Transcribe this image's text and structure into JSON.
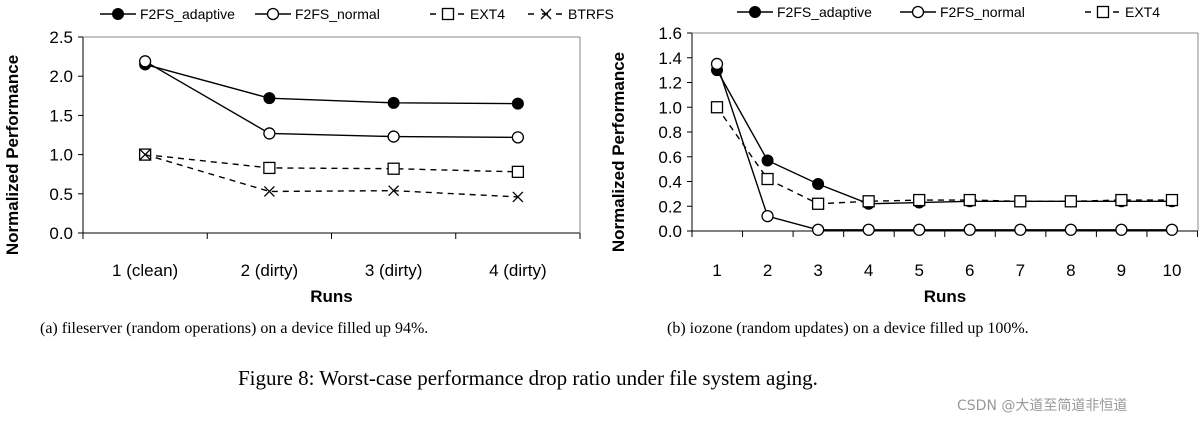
{
  "chart_data": [
    {
      "type": "line",
      "xlabel": "Runs",
      "ylabel": "Normalized Performance",
      "categories": [
        "1 (clean)",
        "2 (dirty)",
        "3 (dirty)",
        "4 (dirty)"
      ],
      "ylim": [
        0,
        2.5
      ],
      "yticks": [
        "0.0",
        "0.5",
        "1.0",
        "1.5",
        "2.0",
        "2.5"
      ],
      "legend_position": "top",
      "grid": false,
      "series": [
        {
          "name": "F2FS_adaptive",
          "marker": "filled-circle",
          "dash": false,
          "values": [
            2.15,
            1.72,
            1.66,
            1.65
          ]
        },
        {
          "name": "F2FS_normal",
          "marker": "open-circle",
          "dash": false,
          "values": [
            2.19,
            1.27,
            1.23,
            1.22
          ]
        },
        {
          "name": "EXT4",
          "marker": "open-square",
          "dash": true,
          "values": [
            1.0,
            0.83,
            0.82,
            0.78
          ]
        },
        {
          "name": "BTRFS",
          "marker": "cross",
          "dash": true,
          "values": [
            1.0,
            0.53,
            0.54,
            0.46
          ]
        }
      ]
    },
    {
      "type": "line",
      "xlabel": "Runs",
      "ylabel": "Normalized Performance",
      "categories": [
        "1",
        "2",
        "3",
        "4",
        "5",
        "6",
        "7",
        "8",
        "9",
        "10"
      ],
      "ylim": [
        0,
        1.6
      ],
      "yticks": [
        "0.0",
        "0.2",
        "0.4",
        "0.6",
        "0.8",
        "1.0",
        "1.2",
        "1.4",
        "1.6"
      ],
      "legend_position": "top",
      "grid": false,
      "series": [
        {
          "name": "F2FS_adaptive",
          "marker": "filled-circle",
          "dash": false,
          "values": [
            1.3,
            0.57,
            0.38,
            0.22,
            0.23,
            0.24,
            0.24,
            0.24,
            0.24,
            0.24
          ]
        },
        {
          "name": "F2FS_normal",
          "marker": "open-circle",
          "dash": false,
          "values": [
            1.35,
            0.12,
            0.01,
            0.01,
            0.01,
            0.01,
            0.01,
            0.01,
            0.01,
            0.01
          ]
        },
        {
          "name": "EXT4",
          "marker": "open-square",
          "dash": true,
          "values": [
            1.0,
            0.42,
            0.22,
            0.24,
            0.25,
            0.25,
            0.24,
            0.24,
            0.25,
            0.25
          ]
        }
      ]
    }
  ],
  "captions": {
    "a": "(a)  fileserver (random operations) on a device filled up 94%.",
    "b": "(b)  iozone (random updates) on a device filled up 100%.",
    "figure": "Figure 8: Worst-case performance drop ratio under file system aging."
  },
  "watermark": "CSDN @大道至简道非恒道"
}
